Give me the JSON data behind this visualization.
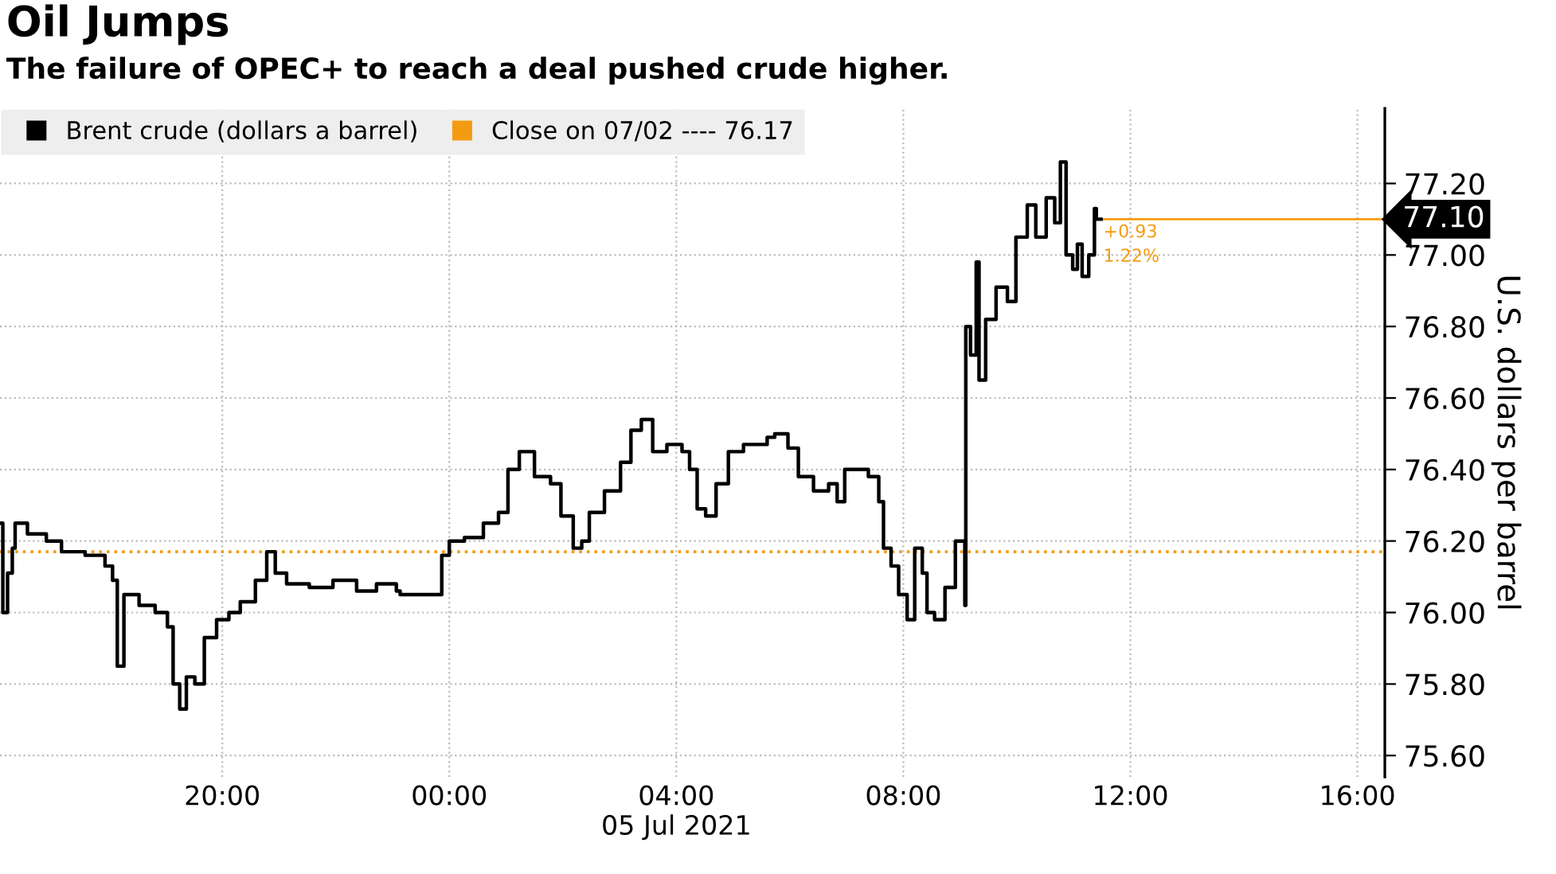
{
  "chart_data": {
    "type": "step",
    "title": "Oil Jumps",
    "subtitle": "The failure of OPEC+ to reach a deal pushed crude higher.",
    "ylabel": "U.S. dollars per barrel",
    "series": [
      {
        "name": "Brent crude (dollars a barrel)",
        "color": "#000000",
        "line_style": "solid",
        "x": [
          "2021-07-04T16:05",
          "2021-07-04T16:08",
          "2021-07-04T16:13",
          "2021-07-04T16:18",
          "2021-07-04T16:21",
          "2021-07-04T16:34",
          "2021-07-04T16:54",
          "2021-07-04T17:10",
          "2021-07-04T17:35",
          "2021-07-04T17:56",
          "2021-07-04T18:04",
          "2021-07-04T18:09",
          "2021-07-04T18:16",
          "2021-07-04T18:32",
          "2021-07-04T18:49",
          "2021-07-04T19:02",
          "2021-07-04T19:08",
          "2021-07-04T19:15",
          "2021-07-04T19:22",
          "2021-07-04T19:31",
          "2021-07-04T19:41",
          "2021-07-04T19:54",
          "2021-07-04T20:07",
          "2021-07-04T20:19",
          "2021-07-04T20:35",
          "2021-07-04T20:47",
          "2021-07-04T20:56",
          "2021-07-04T21:08",
          "2021-07-04T21:32",
          "2021-07-04T21:57",
          "2021-07-04T22:22",
          "2021-07-04T22:43",
          "2021-07-04T23:04",
          "2021-07-04T23:08",
          "2021-07-04T23:52",
          "2021-07-05T00:00",
          "2021-07-05T00:16",
          "2021-07-05T00:36",
          "2021-07-05T00:52",
          "2021-07-05T01:02",
          "2021-07-05T01:14",
          "2021-07-05T01:30",
          "2021-07-05T01:47",
          "2021-07-05T01:58",
          "2021-07-05T02:11",
          "2021-07-05T02:20",
          "2021-07-05T02:28",
          "2021-07-05T02:44",
          "2021-07-05T03:01",
          "2021-07-05T03:12",
          "2021-07-05T03:23",
          "2021-07-05T03:35",
          "2021-07-05T03:50",
          "2021-07-05T04:06",
          "2021-07-05T04:14",
          "2021-07-05T04:22",
          "2021-07-05T04:31",
          "2021-07-05T04:42",
          "2021-07-05T04:55",
          "2021-07-05T05:11",
          "2021-07-05T05:36",
          "2021-07-05T05:44",
          "2021-07-05T05:58",
          "2021-07-05T06:09",
          "2021-07-05T06:25",
          "2021-07-05T06:41",
          "2021-07-05T06:50",
          "2021-07-05T06:58",
          "2021-07-05T07:23",
          "2021-07-05T07:34",
          "2021-07-05T07:39",
          "2021-07-05T07:47",
          "2021-07-05T07:55",
          "2021-07-05T08:04",
          "2021-07-05T08:12",
          "2021-07-05T08:20",
          "2021-07-05T08:25",
          "2021-07-05T08:33",
          "2021-07-05T08:44",
          "2021-07-05T08:55",
          "2021-07-05T09:05",
          "2021-07-05T09:06",
          "2021-07-05T09:11",
          "2021-07-05T09:17",
          "2021-07-05T09:20",
          "2021-07-05T09:27",
          "2021-07-05T09:38",
          "2021-07-05T09:50",
          "2021-07-05T09:59",
          "2021-07-05T10:11",
          "2021-07-05T10:20",
          "2021-07-05T10:31",
          "2021-07-05T10:40",
          "2021-07-05T10:46",
          "2021-07-05T10:52",
          "2021-07-05T10:59",
          "2021-07-05T11:04",
          "2021-07-05T11:09",
          "2021-07-05T11:16",
          "2021-07-05T11:22",
          "2021-07-05T11:24",
          "2021-07-05T11:29"
        ],
        "values": [
          76.25,
          76.0,
          76.11,
          76.18,
          76.25,
          76.22,
          76.2,
          76.17,
          76.16,
          76.13,
          76.09,
          75.85,
          76.05,
          76.02,
          76.0,
          75.96,
          75.8,
          75.73,
          75.82,
          75.8,
          75.93,
          75.98,
          76.0,
          76.03,
          76.09,
          76.17,
          76.11,
          76.08,
          76.07,
          76.09,
          76.06,
          76.08,
          76.06,
          76.05,
          76.16,
          76.2,
          76.21,
          76.25,
          76.28,
          76.4,
          76.45,
          76.38,
          76.36,
          76.27,
          76.18,
          76.2,
          76.28,
          76.34,
          76.42,
          76.51,
          76.54,
          76.45,
          76.47,
          76.45,
          76.4,
          76.29,
          76.27,
          76.36,
          76.45,
          76.47,
          76.49,
          76.5,
          76.46,
          76.38,
          76.34,
          76.36,
          76.31,
          76.4,
          76.38,
          76.31,
          76.18,
          76.13,
          76.05,
          75.98,
          76.18,
          76.11,
          76.0,
          75.98,
          76.07,
          76.2,
          76.02,
          76.8,
          76.72,
          76.98,
          76.65,
          76.82,
          76.91,
          76.87,
          77.05,
          77.14,
          77.05,
          77.16,
          77.09,
          77.26,
          77.0,
          76.96,
          77.03,
          76.94,
          77.0,
          77.13,
          77.1,
          77.1
        ]
      },
      {
        "name": "Close on 07/02 ---- 76.17",
        "color": "#f39c12",
        "line_style": "dotted",
        "type": "line",
        "x": [
          "2021-07-04T16:05",
          "2021-07-05T16:29"
        ],
        "values": [
          76.17,
          76.17
        ]
      }
    ],
    "xlim": [
      "2021-07-04T16:05",
      "2021-07-05T16:29"
    ],
    "ylim": [
      75.54,
      77.41
    ],
    "xticks": [
      {
        "value": "2021-07-04T20:00",
        "label": "20:00"
      },
      {
        "value": "2021-07-05T00:00",
        "label": "00:00"
      },
      {
        "value": "2021-07-05T04:00",
        "label": "04:00\n05 Jul 2021"
      },
      {
        "value": "2021-07-05T08:00",
        "label": "08:00"
      },
      {
        "value": "2021-07-05T12:00",
        "label": "12:00"
      },
      {
        "value": "2021-07-05T16:00",
        "label": "16:00"
      }
    ],
    "yticks": [
      {
        "value": 75.6,
        "label": "75.60"
      },
      {
        "value": 75.8,
        "label": "75.80"
      },
      {
        "value": 76.0,
        "label": "76.00"
      },
      {
        "value": 76.2,
        "label": "76.20"
      },
      {
        "value": 76.4,
        "label": "76.40"
      },
      {
        "value": 76.6,
        "label": "76.60"
      },
      {
        "value": 76.8,
        "label": "76.80"
      },
      {
        "value": 77.0,
        "label": "77.00"
      },
      {
        "value": 77.2,
        "label": "77.20"
      }
    ],
    "annotations": [
      {
        "text": "77.10",
        "x": "2021-07-05T11:29",
        "y": 77.1
      },
      {
        "text": "+0.93",
        "x": "2021-07-05T11:29",
        "y": 77.1
      },
      {
        "text": "1.22%",
        "x": "2021-07-05T11:29",
        "y": 77.1
      }
    ],
    "grid": true,
    "legend": "top left"
  }
}
